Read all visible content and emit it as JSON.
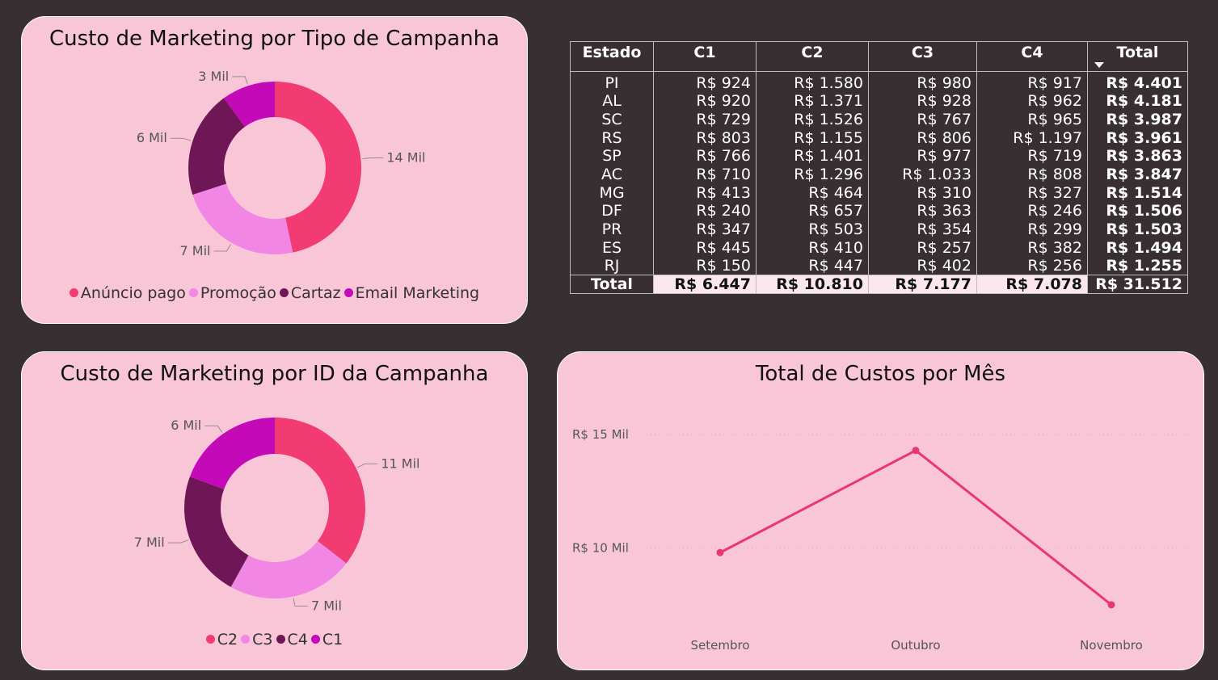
{
  "chart_data": [
    {
      "type": "pie",
      "donut": true,
      "title": "Custo de Marketing por Tipo de Campanha",
      "categories": [
        "Anúncio pago",
        "Promoção",
        "Cartaz",
        "Email Marketing"
      ],
      "values": [
        14,
        7,
        6,
        3
      ],
      "data_labels": [
        "14 Mil",
        "7 Mil",
        "6 Mil",
        "3 Mil"
      ],
      "colors": [
        "#f23b72",
        "#f186e4",
        "#6f1756",
        "#c40ab8"
      ],
      "legend": "bottom"
    },
    {
      "type": "pie",
      "donut": true,
      "title": "Custo de Marketing por ID da Campanha",
      "categories": [
        "C2",
        "C3",
        "C4",
        "C1"
      ],
      "values": [
        11,
        7,
        7,
        6
      ],
      "data_labels": [
        "11 Mil",
        "7 Mil",
        "7 Mil",
        "6 Mil"
      ],
      "colors": [
        "#f23b72",
        "#f186e4",
        "#6f1756",
        "#c40ab8"
      ],
      "legend": "bottom"
    },
    {
      "type": "table",
      "columns": [
        "Estado",
        "C1",
        "C2",
        "C3",
        "C4",
        "Total"
      ],
      "sorted_column": "Total",
      "rows": [
        [
          "PI",
          "R$ 924",
          "R$ 1.580",
          "R$ 980",
          "R$ 917",
          "R$ 4.401"
        ],
        [
          "AL",
          "R$ 920",
          "R$ 1.371",
          "R$ 928",
          "R$ 962",
          "R$ 4.181"
        ],
        [
          "SC",
          "R$ 729",
          "R$ 1.526",
          "R$ 767",
          "R$ 965",
          "R$ 3.987"
        ],
        [
          "RS",
          "R$ 803",
          "R$ 1.155",
          "R$ 806",
          "R$ 1.197",
          "R$ 3.961"
        ],
        [
          "SP",
          "R$ 766",
          "R$ 1.401",
          "R$ 977",
          "R$ 719",
          "R$ 3.863"
        ],
        [
          "AC",
          "R$ 710",
          "R$ 1.296",
          "R$ 1.033",
          "R$ 808",
          "R$ 3.847"
        ],
        [
          "MG",
          "R$ 413",
          "R$ 464",
          "R$ 310",
          "R$ 327",
          "R$ 1.514"
        ],
        [
          "DF",
          "R$ 240",
          "R$ 657",
          "R$ 363",
          "R$ 246",
          "R$ 1.506"
        ],
        [
          "PR",
          "R$ 347",
          "R$ 503",
          "R$ 354",
          "R$ 299",
          "R$ 1.503"
        ],
        [
          "ES",
          "R$ 445",
          "R$ 410",
          "R$ 257",
          "R$ 382",
          "R$ 1.494"
        ],
        [
          "RJ",
          "R$ 150",
          "R$ 447",
          "R$ 402",
          "R$ 256",
          "R$ 1.255"
        ]
      ],
      "totals": [
        "Total",
        "R$ 6.447",
        "R$ 10.810",
        "R$ 7.177",
        "R$ 7.078",
        "R$ 31.512"
      ]
    },
    {
      "type": "line",
      "title": "Total de Custos por Mês",
      "categories": [
        "Setembro",
        "Outubro",
        "Novembro"
      ],
      "values": [
        9800,
        14300,
        7500
      ],
      "ylim": [
        6000,
        16500
      ],
      "yticks": [
        10000,
        15000
      ],
      "ytick_labels": [
        "R$ 10 Mil",
        "R$ 15 Mil"
      ],
      "color": "#e8386d",
      "grid": true
    }
  ]
}
